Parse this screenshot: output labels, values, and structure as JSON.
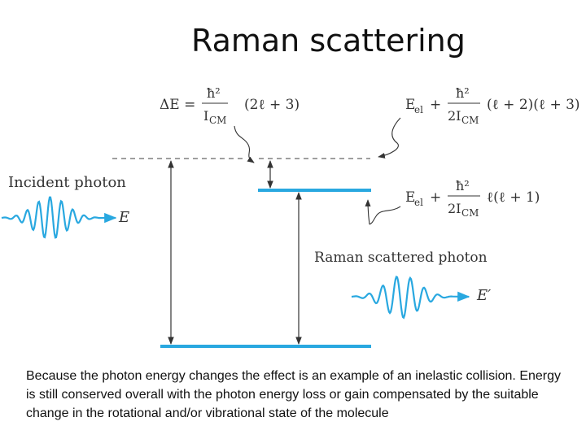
{
  "title": "Raman scattering",
  "labels": {
    "incident_photon": "Incident photon",
    "incident_energy": "E",
    "raman_scattered_photon": "Raman scattered photon",
    "scattered_energy": "E′"
  },
  "equations": {
    "delta_e": {
      "lhs": "ΔE =",
      "numerator": "ħ²",
      "denominator": "I",
      "denominator_sub": "CM",
      "factor": "(2ℓ + 3)"
    },
    "upper_level": {
      "lhs": "E",
      "lhs_sub": "el",
      "plus": "+",
      "numerator": "ħ²",
      "denominator": "2I",
      "denominator_sub": "CM",
      "factor": "(ℓ + 2)(ℓ + 3)"
    },
    "lower_level": {
      "lhs": "E",
      "lhs_sub": "el",
      "plus": "+",
      "numerator": "ħ²",
      "denominator": "2I",
      "denominator_sub": "CM",
      "factor": "ℓ(ℓ + 1)"
    }
  },
  "caption": "Because the photon energy changes the effect is an example of an inelastic collision. Energy is still conserved overall with the photon energy loss or gain compensated by the suitable change in the rotational and/or vibrational state of the molecule",
  "colors": {
    "level": "#29a8e0",
    "wave": "#29a8e0",
    "arrow": "#333333",
    "dashed": "#666666"
  }
}
